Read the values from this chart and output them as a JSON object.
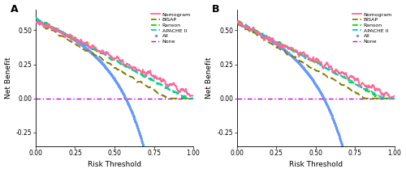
{
  "panel_A_label": "A",
  "panel_B_label": "B",
  "xlim": [
    0.0,
    1.0
  ],
  "ylim": [
    -0.35,
    0.65
  ],
  "xticks": [
    0.0,
    0.25,
    0.5,
    0.75,
    1.0
  ],
  "yticks": [
    -0.25,
    0.0,
    0.25,
    0.5
  ],
  "xlabel": "Risk Threshold",
  "ylabel": "Net Benefit",
  "nomogram_color": "#FF6699",
  "bisap_color": "#808000",
  "ranson_color": "#00DD00",
  "apache_color": "#00CCCC",
  "all_color": "#6699FF",
  "none_color": "#CC00CC",
  "legend_labels": [
    "Nomogram",
    "BISAP",
    "Ranson",
    "APACHE II",
    "All",
    "None"
  ],
  "prev_A": 0.57,
  "prev_B": 0.55
}
